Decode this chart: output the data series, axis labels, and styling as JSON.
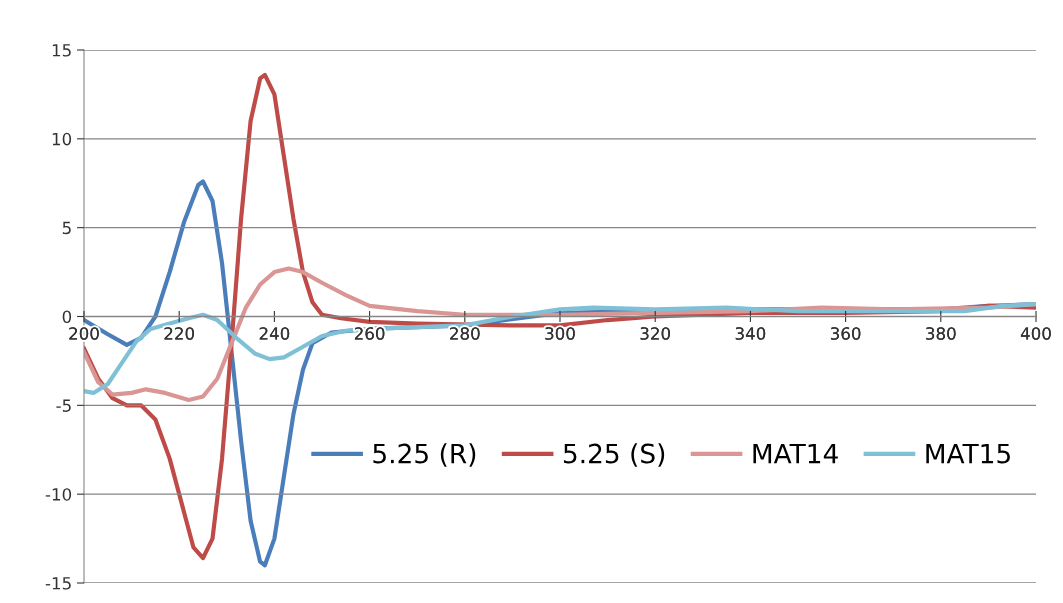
{
  "chart_data": {
    "type": "line",
    "xlim": [
      200,
      400
    ],
    "xticks": [
      200,
      220,
      240,
      260,
      280,
      300,
      320,
      340,
      360,
      380,
      400
    ],
    "ylim": [
      -15,
      15
    ],
    "yticks": [
      -15,
      -10,
      -5,
      0,
      5,
      10,
      15
    ],
    "grid": "y",
    "legend": "bottom right",
    "line_style": "solid",
    "series": [
      {
        "name": "5.25 (R)",
        "color": "#4a7ebb",
        "x": [
          200,
          205,
          209,
          212,
          215,
          218,
          221,
          224,
          225,
          227,
          229,
          231,
          233,
          235,
          237,
          238,
          240,
          242,
          244,
          246,
          248,
          252,
          260,
          280,
          300,
          320,
          340,
          360,
          380,
          390,
          400
        ],
        "values": [
          -0.2,
          -1.0,
          -1.6,
          -1.2,
          0,
          2.5,
          5.3,
          7.4,
          7.6,
          6.5,
          3,
          -2,
          -7,
          -11.5,
          -13.8,
          -14,
          -12.5,
          -9,
          -5.5,
          -3,
          -1.5,
          -0.9,
          -0.7,
          -0.5,
          0.2,
          0.3,
          0.4,
          0.4,
          0.4,
          0.6,
          0.7
        ]
      },
      {
        "name": "5.25 (S)",
        "color": "#be4b48",
        "x": [
          200,
          203,
          206,
          209,
          212,
          215,
          218,
          221,
          223,
          225,
          227,
          229,
          231,
          233,
          235,
          237,
          238,
          240,
          242,
          244,
          246,
          248,
          250,
          254,
          260,
          270,
          290,
          300,
          310,
          320,
          340,
          360,
          380,
          390,
          400
        ],
        "values": [
          -1.8,
          -3.5,
          -4.6,
          -5.0,
          -5.0,
          -5.8,
          -8,
          -11,
          -13,
          -13.6,
          -12.5,
          -8,
          -1.5,
          5.5,
          11,
          13.4,
          13.6,
          12.5,
          9,
          5.5,
          2.5,
          0.8,
          0.1,
          -0.1,
          -0.3,
          -0.4,
          -0.5,
          -0.5,
          -0.2,
          0.0,
          0.2,
          0.2,
          0.3,
          0.6,
          0.5
        ]
      },
      {
        "name": "MAT14",
        "color": "#d99694",
        "x": [
          200,
          203,
          206,
          210,
          213,
          217,
          222,
          225,
          228,
          231,
          234,
          237,
          240,
          243,
          246,
          250,
          255,
          260,
          270,
          280,
          300,
          320,
          340,
          355,
          370,
          390,
          400
        ],
        "values": [
          -2,
          -3.7,
          -4.4,
          -4.3,
          -4.1,
          -4.3,
          -4.7,
          -4.5,
          -3.5,
          -1.5,
          0.5,
          1.8,
          2.5,
          2.7,
          2.5,
          1.9,
          1.2,
          0.6,
          0.3,
          0.1,
          0.1,
          0.2,
          0.3,
          0.5,
          0.4,
          0.5,
          0.7
        ]
      },
      {
        "name": "MAT15",
        "color": "#7fc0d6",
        "x": [
          200,
          202,
          205,
          208,
          211,
          214,
          218,
          222,
          225,
          228,
          232,
          236,
          239,
          242,
          246,
          250,
          255,
          260,
          280,
          290,
          300,
          307,
          320,
          335,
          350,
          370,
          385,
          393,
          400
        ],
        "values": [
          -4.2,
          -4.3,
          -3.8,
          -2.6,
          -1.4,
          -0.7,
          -0.4,
          -0.1,
          0.1,
          -0.2,
          -1.2,
          -2.1,
          -2.4,
          -2.3,
          -1.7,
          -1.1,
          -0.8,
          -0.7,
          -0.5,
          0,
          0.4,
          0.5,
          0.4,
          0.5,
          0.3,
          0.3,
          0.3,
          0.6,
          0.7
        ]
      }
    ]
  }
}
